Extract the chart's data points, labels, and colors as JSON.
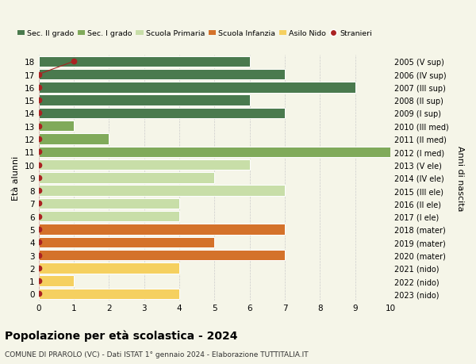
{
  "ages": [
    18,
    17,
    16,
    15,
    14,
    13,
    12,
    11,
    10,
    9,
    8,
    7,
    6,
    5,
    4,
    3,
    2,
    1,
    0
  ],
  "years": [
    "2005 (V sup)",
    "2006 (IV sup)",
    "2007 (III sup)",
    "2008 (II sup)",
    "2009 (I sup)",
    "2010 (III med)",
    "2011 (II med)",
    "2012 (I med)",
    "2013 (V ele)",
    "2014 (IV ele)",
    "2015 (III ele)",
    "2016 (II ele)",
    "2017 (I ele)",
    "2018 (mater)",
    "2019 (mater)",
    "2020 (mater)",
    "2021 (nido)",
    "2022 (nido)",
    "2023 (nido)"
  ],
  "values": [
    6,
    7,
    9,
    6,
    7,
    1,
    2,
    10,
    6,
    5,
    7,
    4,
    4,
    7,
    5,
    7,
    4,
    1,
    4
  ],
  "stranieri_x": [
    1,
    0,
    0,
    0,
    0,
    0,
    0,
    0,
    0,
    0,
    0,
    0,
    0,
    0,
    0,
    0,
    0,
    0,
    0
  ],
  "stranieri_ages": [
    18,
    17,
    16,
    15,
    14,
    13,
    12,
    11,
    10,
    9,
    8,
    7,
    6,
    5,
    4,
    3,
    2,
    1,
    0
  ],
  "categories": {
    "sec2": [
      18,
      17,
      16,
      15,
      14
    ],
    "sec1": [
      13,
      12,
      11
    ],
    "primaria": [
      10,
      9,
      8,
      7,
      6
    ],
    "infanzia": [
      5,
      4,
      3
    ],
    "nido": [
      2,
      1,
      0
    ]
  },
  "colors": {
    "sec2": "#4a7a4e",
    "sec1": "#80aa5a",
    "primaria": "#c8dea8",
    "infanzia": "#d4722a",
    "nido": "#f5d060",
    "stranieri": "#aa2222"
  },
  "title": "Popolazione per età scolastica - 2024",
  "subtitle": "COMUNE DI PRAROLO (VC) - Dati ISTAT 1° gennaio 2024 - Elaborazione TUTTITALIA.IT",
  "ylabel_left": "Età alunni",
  "ylabel_right": "Anni di nascita",
  "xlim": [
    0,
    10
  ],
  "legend_labels": [
    "Sec. II grado",
    "Sec. I grado",
    "Scuola Primaria",
    "Scuola Infanzia",
    "Asilo Nido",
    "Stranieri"
  ],
  "bg_color": "#f5f5e8",
  "grid_color": "#cccccc"
}
